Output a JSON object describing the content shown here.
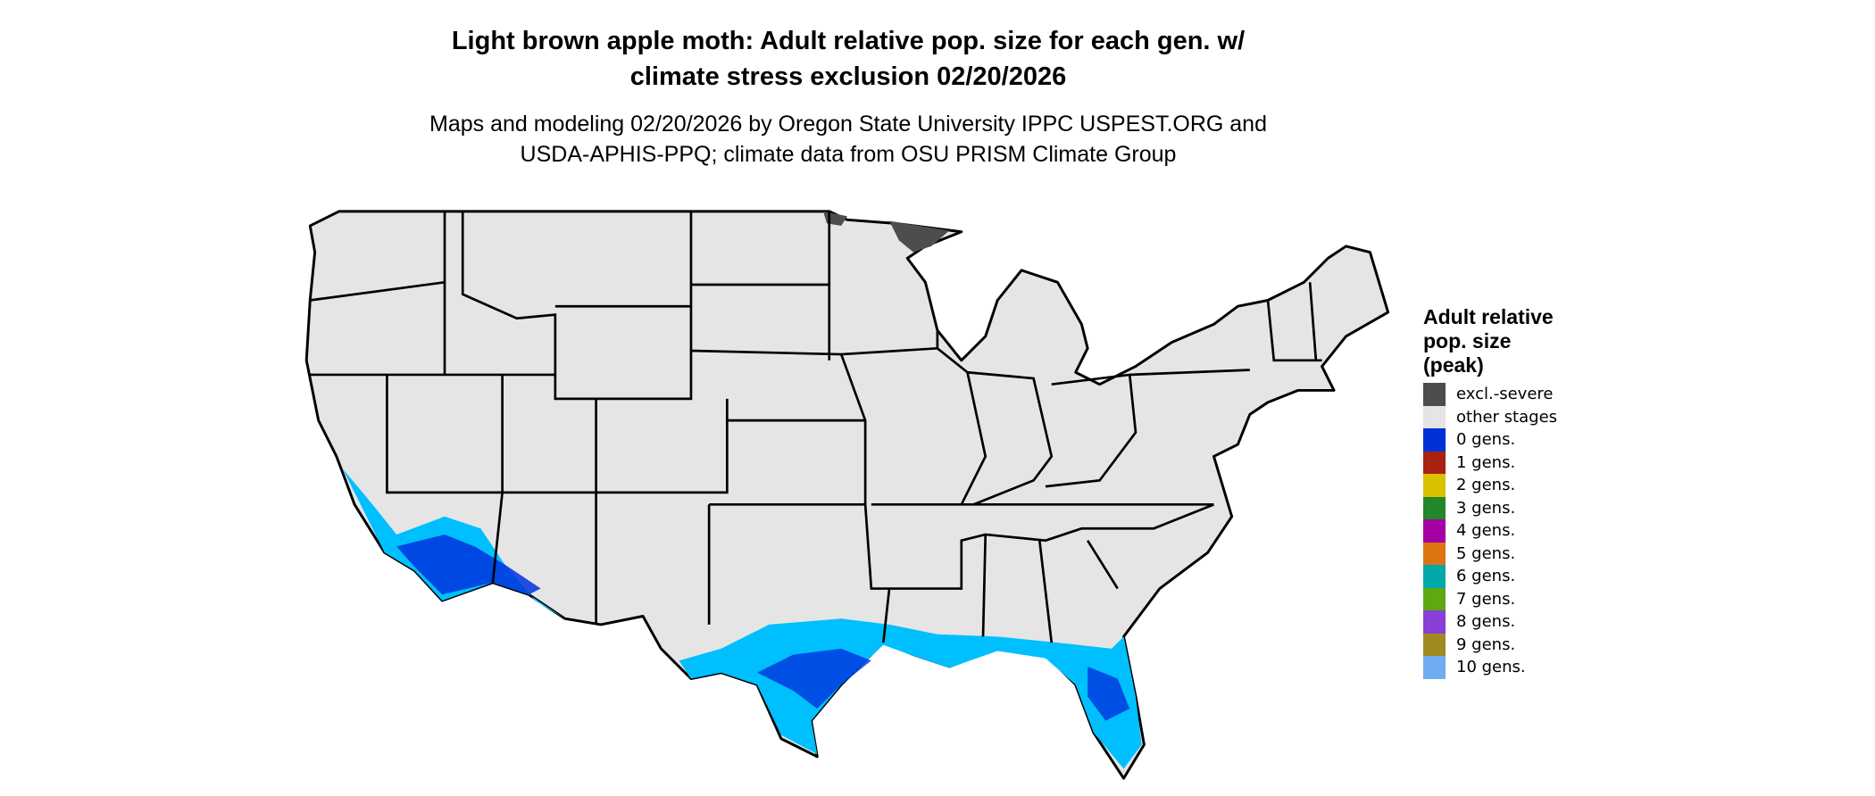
{
  "title": {
    "line1": "Light brown apple moth: Adult relative pop. size for each gen. w/",
    "line2": "climate stress exclusion 02/20/2026"
  },
  "subtitle": {
    "line1": "Maps and modeling 02/20/2026 by Oregon State University IPPC USPEST.ORG and",
    "line2": "USDA-APHIS-PPQ; climate data from OSU PRISM Climate Group"
  },
  "map": {
    "region": "Conterminous United States",
    "base_color": "#e5e5e5",
    "border_color": "#000000",
    "highlight_colors": {
      "excluded": "#4d4d4d",
      "dark_blue": "#0033dd",
      "light_blue": "#00bfff"
    }
  },
  "legend": {
    "title": "Adult relative pop. size (peak)",
    "title_lines": [
      "Adult relative",
      "pop. size",
      "(peak)"
    ],
    "items": [
      {
        "label": "excl.-severe",
        "color": "#4d4d4d"
      },
      {
        "label": "other stages",
        "color": "#e5e5e5"
      },
      {
        "label": "0 gens.",
        "color": "#0030d8"
      },
      {
        "label": "1 gens.",
        "color": "#a82214"
      },
      {
        "label": "2 gens.",
        "color": "#d8c200"
      },
      {
        "label": "3 gens.",
        "color": "#24862a"
      },
      {
        "label": "4 gens.",
        "color": "#a400a4"
      },
      {
        "label": "5 gens.",
        "color": "#dc7412"
      },
      {
        "label": "6 gens.",
        "color": "#00a8a8"
      },
      {
        "label": "7 gens.",
        "color": "#5ea812"
      },
      {
        "label": "8 gens.",
        "color": "#8840d8"
      },
      {
        "label": "9 gens.",
        "color": "#a08a20"
      },
      {
        "label": "10 gens.",
        "color": "#70acf0"
      }
    ]
  }
}
